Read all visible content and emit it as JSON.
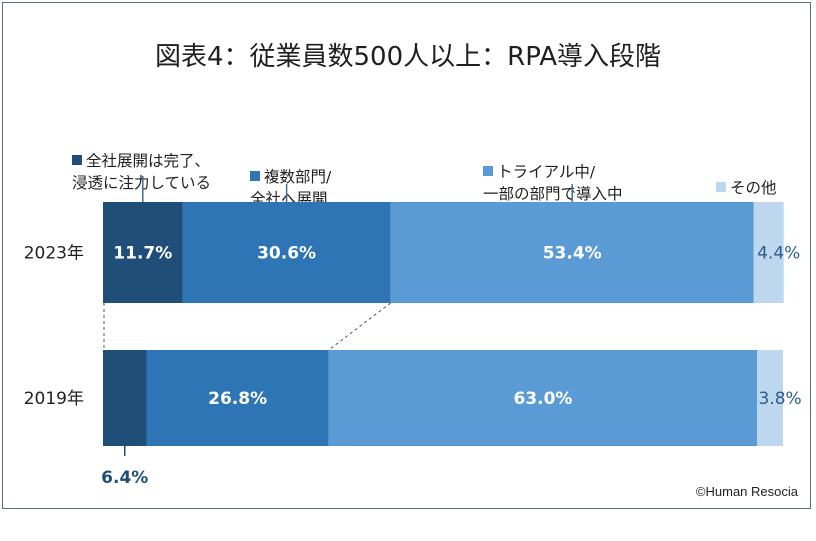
{
  "title": "図表4：従業員数500人以上：RPA導入段階",
  "copyright": "©Human Resocia",
  "chart_data": {
    "type": "bar",
    "orientation": "horizontal",
    "stacked": true,
    "percent": true,
    "title": "図表4：従業員数500人以上：RPA導入段階",
    "categories": [
      "2023年",
      "2019年"
    ],
    "series": [
      {
        "name": "全社展開は完了、\n浸透に注力している",
        "values": [
          11.7,
          6.4
        ],
        "labels": [
          "11.7%",
          "6.4%"
        ],
        "color": "#1f4e79"
      },
      {
        "name": "複数部門/\n全社へ展開",
        "values": [
          30.6,
          26.8
        ],
        "labels": [
          "30.6%",
          "26.8%"
        ],
        "color": "#2e75b6"
      },
      {
        "name": "トライアル中/\n一部の部門で導入中",
        "values": [
          53.4,
          63.0
        ],
        "labels": [
          "53.4%",
          "63.0%"
        ],
        "color": "#5b9bd5"
      },
      {
        "name": "その他",
        "values": [
          4.4,
          3.8
        ],
        "labels": [
          "4.4%",
          "3.8%"
        ],
        "color": "#bdd7ee"
      }
    ],
    "xlim": [
      0,
      100
    ]
  }
}
